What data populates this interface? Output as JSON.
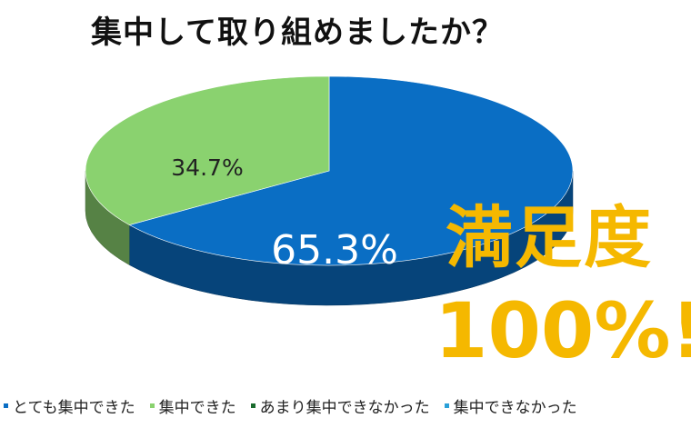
{
  "title": "集中して取り組めましたか？",
  "callout": {
    "line1": "満足度",
    "line2": "100%!"
  },
  "colors": {
    "blue": "#0a6ec4",
    "blue_dark": "#063f73",
    "green": "#8ad26f",
    "green_dark": "#6fae57",
    "callout": "#f5b800"
  },
  "chart_data": {
    "type": "pie",
    "title": "集中して取り組めましたか？",
    "slices": [
      {
        "label": "とても集中できた",
        "value": 65.3,
        "display": "65.3%",
        "color": "#0a6ec4"
      },
      {
        "label": "集中できた",
        "value": 34.7,
        "display": "34.7%",
        "color": "#8ad26f"
      },
      {
        "label": "あまり集中できなかった",
        "value": 0,
        "display": "",
        "color": "#1a6b2e"
      },
      {
        "label": "集中できなかった",
        "value": 0,
        "display": "",
        "color": "#2aa0d8"
      }
    ],
    "legend_position": "bottom"
  }
}
